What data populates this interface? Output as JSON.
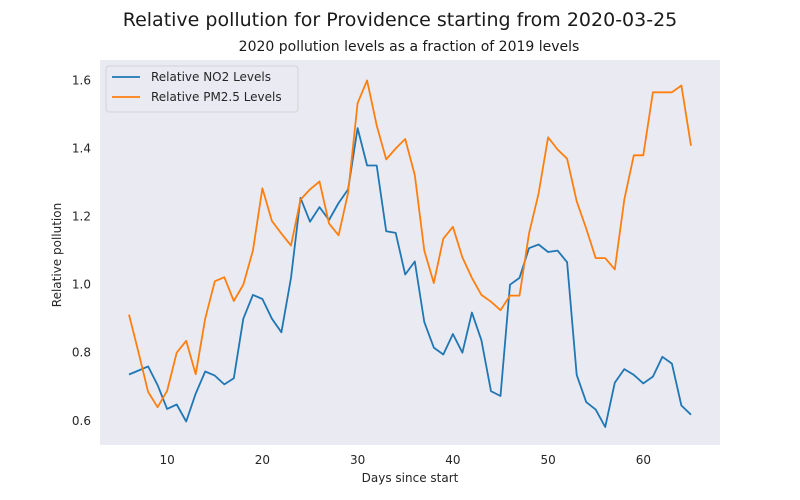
{
  "chart_data": {
    "type": "line",
    "title": "Relative pollution for Providence starting from 2020-03-25",
    "subtitle": "2020 pollution levels as a fraction of 2019 levels",
    "xlabel": "Days since start",
    "ylabel": "Relative pollution",
    "xlim": [
      2.95,
      68.05
    ],
    "ylim": [
      0.529,
      1.66
    ],
    "xticks": [
      10,
      20,
      30,
      40,
      50,
      60
    ],
    "yticks": [
      0.6,
      0.8,
      1.0,
      1.2,
      1.4,
      1.6
    ],
    "xtick_labels": [
      "10",
      "20",
      "30",
      "40",
      "50",
      "60"
    ],
    "ytick_labels": [
      "0.6",
      "0.8",
      "1.0",
      "1.2",
      "1.4",
      "1.6"
    ],
    "grid": false,
    "legend_position": "upper-left",
    "background_color": "#eaeaf2",
    "series": [
      {
        "name": "Relative NO2 Levels",
        "color": "#1f77b4",
        "x": [
          6,
          7,
          8,
          9,
          10,
          11,
          12,
          13,
          14,
          15,
          16,
          17,
          18,
          19,
          20,
          21,
          22,
          23,
          24,
          25,
          26,
          27,
          28,
          29,
          30,
          31,
          32,
          33,
          34,
          35,
          36,
          37,
          38,
          39,
          40,
          41,
          42,
          43,
          44,
          45,
          46,
          47,
          48,
          49,
          50,
          51,
          52,
          53,
          54,
          55,
          56,
          57,
          58,
          59,
          60,
          61,
          62,
          63,
          64,
          65
        ],
        "y": [
          0.736,
          0.748,
          0.76,
          0.705,
          0.635,
          0.648,
          0.598,
          0.68,
          0.745,
          0.733,
          0.707,
          0.725,
          0.9,
          0.97,
          0.958,
          0.9,
          0.86,
          1.02,
          1.255,
          1.185,
          1.228,
          1.19,
          1.24,
          1.28,
          1.46,
          1.35,
          1.35,
          1.157,
          1.152,
          1.03,
          1.068,
          0.89,
          0.815,
          0.795,
          0.855,
          0.8,
          0.918,
          0.837,
          0.687,
          0.673,
          1.0,
          1.02,
          1.107,
          1.118,
          1.096,
          1.1,
          1.066,
          0.735,
          0.655,
          0.633,
          0.582,
          0.712,
          0.752,
          0.735,
          0.71,
          0.73,
          0.788,
          0.768,
          0.645,
          0.618
        ]
      },
      {
        "name": "Relative PM2.5 Levels",
        "color": "#ff7f0e",
        "x": [
          6,
          7,
          8,
          9,
          10,
          11,
          12,
          13,
          14,
          15,
          16,
          17,
          18,
          19,
          20,
          21,
          22,
          23,
          24,
          25,
          26,
          27,
          28,
          29,
          30,
          31,
          32,
          33,
          34,
          35,
          36,
          37,
          38,
          39,
          40,
          41,
          42,
          43,
          44,
          45,
          46,
          47,
          48,
          49,
          50,
          51,
          52,
          53,
          54,
          55,
          56,
          57,
          58,
          59,
          60,
          61,
          62,
          63,
          64,
          65
        ],
        "y": [
          0.912,
          0.8,
          0.685,
          0.64,
          0.688,
          0.8,
          0.835,
          0.737,
          0.9,
          1.01,
          1.022,
          0.952,
          1.0,
          1.1,
          1.283,
          1.187,
          1.15,
          1.115,
          1.25,
          1.28,
          1.303,
          1.18,
          1.145,
          1.27,
          1.533,
          1.6,
          1.468,
          1.368,
          1.4,
          1.428,
          1.322,
          1.1,
          1.005,
          1.135,
          1.17,
          1.08,
          1.02,
          0.97,
          0.95,
          0.925,
          0.968,
          0.968,
          1.15,
          1.268,
          1.433,
          1.397,
          1.37,
          1.245,
          1.165,
          1.078,
          1.078,
          1.045,
          1.25,
          1.38,
          1.38,
          1.565,
          1.565,
          1.565,
          1.585,
          1.408
        ]
      }
    ]
  }
}
